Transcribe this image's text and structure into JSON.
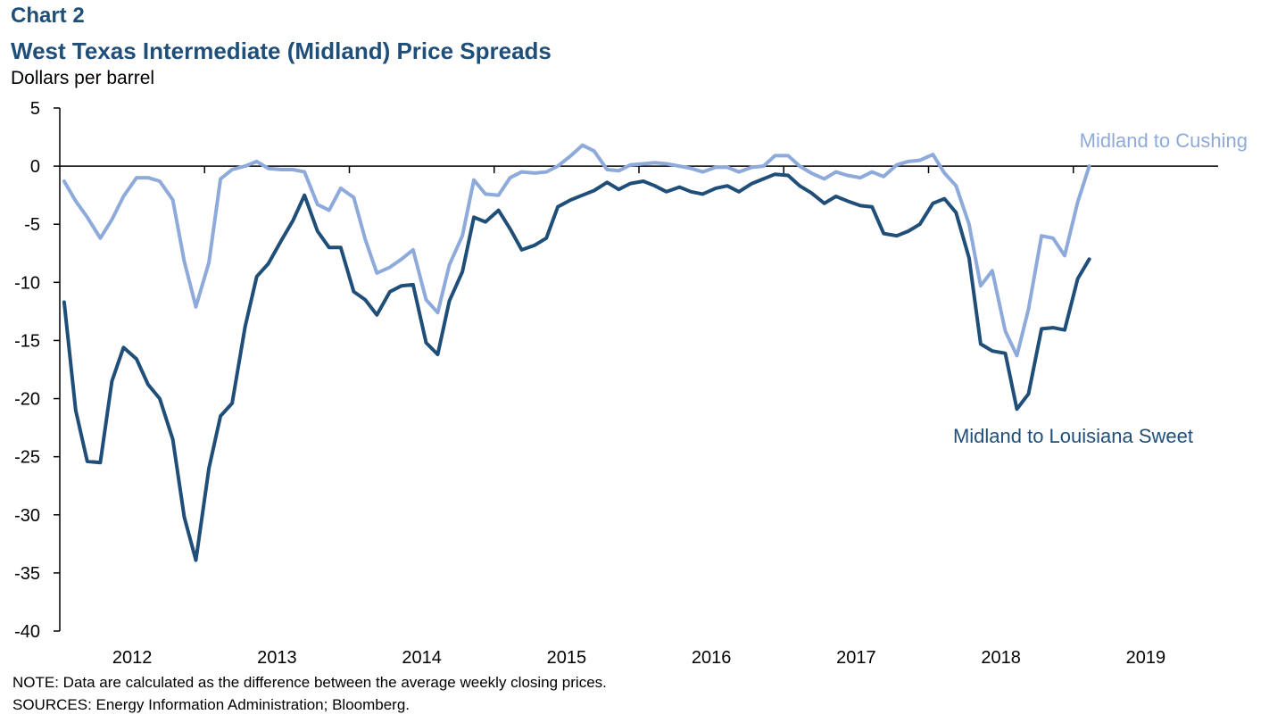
{
  "header": {
    "label": "Chart 2",
    "title": "West Texas Intermediate (Midland) Price Spreads",
    "unit": "Dollars per barrel"
  },
  "notes": {
    "note": "NOTE: Data are calculated as the difference between the average weekly closing prices.",
    "sources": "SOURCES: Energy Information Administration; Bloomberg."
  },
  "colors": {
    "cushing": "#8eaadb",
    "louisiana": "#1f4e79"
  },
  "chart_data": {
    "type": "line",
    "title": "West Texas Intermediate (Midland) Price Spreads",
    "ylabel": "Dollars per barrel",
    "xlabel": "",
    "ylim": [
      -40,
      5
    ],
    "yticks": [
      5,
      0,
      -5,
      -10,
      -15,
      -20,
      -25,
      -30,
      -35,
      -40
    ],
    "xlim": [
      2011.5,
      2019.5
    ],
    "xticks": [
      2012,
      2013,
      2014,
      2015,
      2016,
      2017,
      2018,
      2019
    ],
    "grid": false,
    "series": [
      {
        "name": "Midland to Cushing",
        "color": "#8eaadb",
        "x": [
          2011.53,
          2011.61,
          2011.69,
          2011.78,
          2011.86,
          2011.94,
          2012.03,
          2012.11,
          2012.19,
          2012.28,
          2012.36,
          2012.44,
          2012.53,
          2012.61,
          2012.69,
          2012.78,
          2012.86,
          2012.94,
          2013.03,
          2013.11,
          2013.19,
          2013.28,
          2013.36,
          2013.44,
          2013.53,
          2013.61,
          2013.69,
          2013.78,
          2013.86,
          2013.94,
          2014.03,
          2014.11,
          2014.19,
          2014.28,
          2014.36,
          2014.44,
          2014.53,
          2014.61,
          2014.69,
          2014.78,
          2014.86,
          2014.94,
          2015.03,
          2015.11,
          2015.19,
          2015.28,
          2015.36,
          2015.44,
          2015.53,
          2015.61,
          2015.69,
          2015.78,
          2015.86,
          2015.94,
          2016.03,
          2016.11,
          2016.19,
          2016.28,
          2016.36,
          2016.44,
          2016.53,
          2016.61,
          2016.69,
          2016.78,
          2016.86,
          2016.94,
          2017.03,
          2017.11,
          2017.19,
          2017.28,
          2017.36,
          2017.44,
          2017.53,
          2017.61,
          2017.69,
          2017.78,
          2017.86,
          2017.94,
          2018.03,
          2018.11,
          2018.19,
          2018.28,
          2018.36,
          2018.44,
          2018.53,
          2018.61
        ],
        "values": [
          -1.3,
          -3.0,
          -4.4,
          -6.2,
          -4.6,
          -2.6,
          -1.0,
          -1.0,
          -1.3,
          -2.9,
          -8.2,
          -12.1,
          -8.3,
          -1.1,
          -0.3,
          0.0,
          0.4,
          -0.2,
          -0.3,
          -0.3,
          -0.5,
          -3.3,
          -3.8,
          -1.9,
          -2.7,
          -6.3,
          -9.2,
          -8.7,
          -8.0,
          -7.2,
          -11.5,
          -12.6,
          -8.5,
          -6.0,
          -1.2,
          -2.4,
          -2.5,
          -1.0,
          -0.5,
          -0.6,
          -0.5,
          0.0,
          0.9,
          1.8,
          1.3,
          -0.3,
          -0.4,
          0.1,
          0.2,
          0.3,
          0.2,
          0.0,
          -0.2,
          -0.5,
          -0.1,
          -0.1,
          -0.5,
          -0.1,
          0.0,
          0.9,
          0.9,
          0.0,
          -0.6,
          -1.1,
          -0.5,
          -0.8,
          -1.0,
          -0.5,
          -0.9,
          0.1,
          0.4,
          0.5,
          1.0,
          -0.6,
          -1.7,
          -5.0,
          -10.3,
          -9.0,
          -14.2,
          -16.3,
          -12.3,
          -6.0,
          -6.2,
          -7.7,
          -3.1,
          0.0
        ]
      },
      {
        "name": "Midland to Louisiana Sweet",
        "color": "#1f4e79",
        "x": [
          2011.53,
          2011.61,
          2011.69,
          2011.78,
          2011.86,
          2011.94,
          2012.03,
          2012.11,
          2012.19,
          2012.28,
          2012.36,
          2012.44,
          2012.53,
          2012.61,
          2012.69,
          2012.78,
          2012.86,
          2012.94,
          2013.03,
          2013.11,
          2013.19,
          2013.28,
          2013.36,
          2013.44,
          2013.53,
          2013.61,
          2013.69,
          2013.78,
          2013.86,
          2013.94,
          2014.03,
          2014.11,
          2014.19,
          2014.28,
          2014.36,
          2014.44,
          2014.53,
          2014.61,
          2014.69,
          2014.78,
          2014.86,
          2014.94,
          2015.03,
          2015.11,
          2015.19,
          2015.28,
          2015.36,
          2015.44,
          2015.53,
          2015.61,
          2015.69,
          2015.78,
          2015.86,
          2015.94,
          2016.03,
          2016.11,
          2016.19,
          2016.28,
          2016.36,
          2016.44,
          2016.53,
          2016.61,
          2016.69,
          2016.78,
          2016.86,
          2016.94,
          2017.03,
          2017.11,
          2017.19,
          2017.28,
          2017.36,
          2017.44,
          2017.53,
          2017.61,
          2017.69,
          2017.78,
          2017.86,
          2017.94,
          2018.03,
          2018.11,
          2018.19,
          2018.28,
          2018.36,
          2018.44,
          2018.53,
          2018.61
        ],
        "values": [
          -11.7,
          -21.0,
          -25.4,
          -25.5,
          -18.5,
          -15.6,
          -16.6,
          -18.8,
          -20.0,
          -23.5,
          -30.2,
          -33.9,
          -26.0,
          -21.5,
          -20.4,
          -13.8,
          -9.5,
          -8.4,
          -6.4,
          -4.7,
          -2.5,
          -5.6,
          -7.0,
          -7.0,
          -10.8,
          -11.5,
          -12.8,
          -10.8,
          -10.3,
          -10.2,
          -15.2,
          -16.2,
          -11.6,
          -9.1,
          -4.4,
          -4.8,
          -3.8,
          -5.4,
          -7.2,
          -6.8,
          -6.2,
          -3.5,
          -2.9,
          -2.5,
          -2.1,
          -1.4,
          -2.0,
          -1.5,
          -1.3,
          -1.7,
          -2.2,
          -1.8,
          -2.2,
          -2.4,
          -1.9,
          -1.7,
          -2.2,
          -1.5,
          -1.1,
          -0.7,
          -0.8,
          -1.7,
          -2.3,
          -3.2,
          -2.6,
          -3.0,
          -3.4,
          -3.5,
          -5.8,
          -6.0,
          -5.6,
          -5.0,
          -3.2,
          -2.8,
          -4.0,
          -7.9,
          -15.3,
          -15.9,
          -16.1,
          -20.9,
          -19.6,
          -14.0,
          -13.9,
          -14.1,
          -9.7,
          -8.0
        ]
      }
    ],
    "annotations": [
      "Midland to Cushing",
      "Midland to Louisiana Sweet"
    ]
  }
}
